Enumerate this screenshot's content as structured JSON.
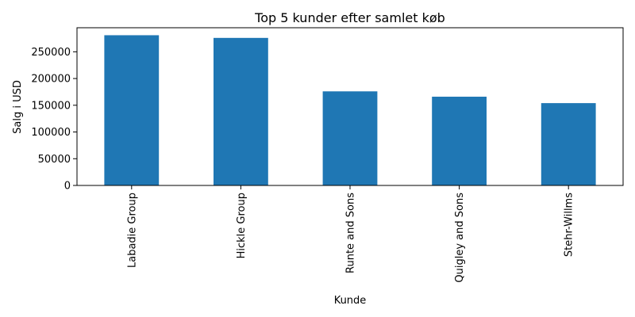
{
  "colors": {
    "bar": "#1f77b4",
    "axis": "#000000",
    "background": "#ffffff"
  },
  "chart_data": {
    "type": "bar",
    "title": "Top 5 kunder efter samlet køb",
    "xlabel": "Kunde",
    "ylabel": "Salg i USD",
    "categories": [
      "Labadie Group",
      "Hickle Group",
      "Runte and Sons",
      "Quigley and Sons",
      "Stehr-Willms"
    ],
    "values": [
      281000,
      276000,
      176000,
      166000,
      154000
    ],
    "ylim": [
      0,
      295000
    ],
    "yticks": [
      0,
      50000,
      100000,
      150000,
      200000,
      250000
    ],
    "ytick_labels": [
      "0",
      "50000",
      "100000",
      "150000",
      "200000",
      "250000"
    ],
    "grid": false,
    "legend": "none"
  }
}
